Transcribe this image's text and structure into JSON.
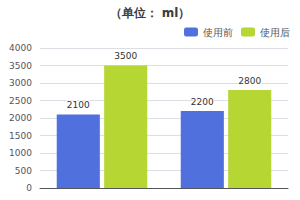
{
  "chart_data": {
    "type": "bar",
    "title": "（单位： ml）",
    "categories": [
      null,
      null
    ],
    "series": [
      {
        "name": "使用前",
        "values": [
          2100,
          2200
        ]
      },
      {
        "name": "使用后",
        "values": [
          3500,
          2800
        ]
      }
    ],
    "ylim": [
      0,
      4000
    ],
    "yticks": [
      0,
      500,
      1000,
      1500,
      2000,
      2500,
      3000,
      3500,
      4000
    ],
    "grid": true,
    "legend": "upper right",
    "data_labels": true,
    "tick_labels": "y"
  }
}
